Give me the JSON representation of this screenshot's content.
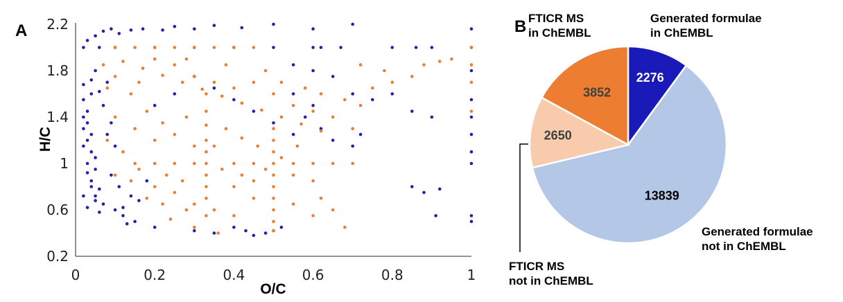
{
  "chart_data": [
    {
      "type": "scatter",
      "panel_label": "A",
      "xlabel": "O/C",
      "ylabel": "H/C",
      "xlim": [
        0,
        1
      ],
      "ylim": [
        0.2,
        2.2
      ],
      "x_ticks": [
        "0",
        "0.2",
        "0.4",
        "0.6",
        "0.8",
        "1"
      ],
      "y_ticks": [
        "0.2",
        "0.6",
        "1",
        "1.4",
        "1.8",
        "2.2"
      ],
      "grid": false,
      "legend": "none",
      "series": [
        {
          "color": "#1f1fb4",
          "points": [
            [
              0.02,
              1.55
            ],
            [
              0.03,
              1.45
            ],
            [
              0.02,
              1.3
            ],
            [
              0.03,
              1.2
            ],
            [
              0.04,
              1.1
            ],
            [
              0.03,
              1.0
            ],
            [
              0.05,
              0.95
            ],
            [
              0.04,
              0.85
            ],
            [
              0.06,
              0.78
            ],
            [
              0.05,
              0.72
            ],
            [
              0.07,
              0.65
            ],
            [
              0.06,
              1.62
            ],
            [
              0.04,
              1.72
            ],
            [
              0.05,
              1.8
            ],
            [
              0.08,
              1.7
            ],
            [
              0.07,
              1.5
            ],
            [
              0.09,
              1.35
            ],
            [
              0.08,
              1.25
            ],
            [
              0.1,
              1.15
            ],
            [
              0.09,
              0.9
            ],
            [
              0.11,
              0.8
            ],
            [
              0.1,
              0.6
            ],
            [
              0.12,
              0.55
            ],
            [
              0.13,
              0.48
            ],
            [
              0.15,
              0.5
            ],
            [
              0.03,
              2.06
            ],
            [
              0.05,
              2.1
            ],
            [
              0.07,
              2.14
            ],
            [
              0.09,
              2.16
            ],
            [
              0.11,
              2.12
            ],
            [
              0.14,
              2.15
            ],
            [
              0.17,
              2.16
            ],
            [
              0.22,
              2.15
            ],
            [
              0.25,
              2.18
            ],
            [
              0.3,
              2.16
            ],
            [
              0.35,
              2.19
            ],
            [
              0.42,
              2.17
            ],
            [
              0.5,
              2.2
            ],
            [
              0.6,
              2.16
            ],
            [
              0.7,
              2.2
            ],
            [
              1.0,
              2.16
            ],
            [
              0.02,
              2.0
            ],
            [
              0.06,
              2.0
            ],
            [
              0.1,
              2.0
            ],
            [
              0.2,
              2.0
            ],
            [
              0.3,
              2.0
            ],
            [
              0.4,
              2.0
            ],
            [
              0.5,
              2.0
            ],
            [
              0.6,
              2.0
            ],
            [
              0.62,
              2.0
            ],
            [
              0.67,
              2.0
            ],
            [
              0.8,
              2.0
            ],
            [
              0.86,
              2.0
            ],
            [
              0.9,
              2.0
            ],
            [
              1.0,
              2.0
            ],
            [
              0.55,
              1.85
            ],
            [
              0.6,
              1.8
            ],
            [
              0.65,
              1.75
            ],
            [
              0.7,
              1.6
            ],
            [
              0.75,
              1.55
            ],
            [
              0.8,
              1.6
            ],
            [
              0.85,
              1.45
            ],
            [
              0.9,
              1.4
            ],
            [
              0.55,
              1.6
            ],
            [
              0.6,
              1.5
            ],
            [
              0.58,
              1.4
            ],
            [
              0.62,
              1.3
            ],
            [
              0.65,
              1.2
            ],
            [
              0.7,
              1.15
            ],
            [
              0.72,
              1.25
            ],
            [
              0.85,
              0.8
            ],
            [
              0.88,
              0.75
            ],
            [
              0.92,
              0.78
            ],
            [
              0.91,
              0.55
            ],
            [
              1.0,
              0.55
            ],
            [
              1.0,
              0.5
            ],
            [
              1.0,
              1.0
            ],
            [
              1.0,
              1.1
            ],
            [
              1.0,
              1.25
            ],
            [
              1.0,
              1.4
            ],
            [
              1.0,
              1.55
            ],
            [
              1.0,
              1.8
            ],
            [
              0.45,
              0.38
            ],
            [
              0.48,
              0.4
            ],
            [
              0.5,
              0.42
            ],
            [
              0.52,
              0.45
            ],
            [
              0.43,
              0.42
            ],
            [
              0.4,
              0.45
            ],
            [
              0.35,
              0.4
            ],
            [
              0.3,
              0.42
            ],
            [
              0.2,
              0.45
            ],
            [
              0.12,
              0.62
            ],
            [
              0.14,
              0.72
            ],
            [
              0.16,
              0.68
            ],
            [
              0.18,
              0.85
            ],
            [
              0.2,
              1.5
            ],
            [
              0.25,
              1.6
            ],
            [
              0.3,
              1.75
            ],
            [
              0.35,
              1.65
            ],
            [
              0.4,
              1.55
            ],
            [
              0.45,
              1.45
            ],
            [
              0.5,
              1.35
            ],
            [
              0.55,
              1.25
            ],
            [
              0.02,
              1.4
            ],
            [
              0.03,
              1.35
            ],
            [
              0.04,
              1.25
            ],
            [
              0.02,
              1.15
            ],
            [
              0.05,
              1.05
            ],
            [
              0.03,
              0.92
            ],
            [
              0.04,
              0.8
            ],
            [
              0.05,
              0.68
            ],
            [
              0.06,
              0.58
            ],
            [
              0.02,
              0.72
            ],
            [
              0.03,
              0.62
            ],
            [
              0.04,
              1.6
            ],
            [
              0.02,
              1.68
            ]
          ]
        },
        {
          "color": "#ed7d31",
          "points": [
            [
              0.1,
              2.0
            ],
            [
              0.15,
              2.0
            ],
            [
              0.2,
              2.0
            ],
            [
              0.25,
              2.0
            ],
            [
              0.3,
              2.0
            ],
            [
              0.35,
              2.0
            ],
            [
              0.4,
              2.0
            ],
            [
              0.45,
              2.0
            ],
            [
              0.12,
              1.88
            ],
            [
              0.17,
              1.82
            ],
            [
              0.22,
              1.76
            ],
            [
              0.27,
              1.7
            ],
            [
              0.32,
              1.64
            ],
            [
              0.37,
              1.58
            ],
            [
              0.42,
              1.52
            ],
            [
              0.47,
              1.46
            ],
            [
              0.52,
              1.4
            ],
            [
              0.57,
              1.34
            ],
            [
              0.62,
              1.28
            ],
            [
              0.2,
              1.9
            ],
            [
              0.25,
              1.85
            ],
            [
              0.3,
              1.75
            ],
            [
              0.35,
              1.7
            ],
            [
              0.4,
              1.65
            ],
            [
              0.45,
              1.7
            ],
            [
              0.5,
              1.6
            ],
            [
              0.55,
              1.5
            ],
            [
              0.6,
              1.45
            ],
            [
              0.65,
              1.4
            ],
            [
              0.7,
              1.3
            ],
            [
              0.33,
              1.33
            ],
            [
              0.33,
              1.2
            ],
            [
              0.33,
              1.1
            ],
            [
              0.33,
              1.0
            ],
            [
              0.33,
              0.9
            ],
            [
              0.33,
              0.8
            ],
            [
              0.33,
              0.7
            ],
            [
              0.33,
              1.45
            ],
            [
              0.33,
              1.6
            ],
            [
              0.33,
              0.55
            ],
            [
              0.5,
              1.0
            ],
            [
              0.5,
              0.9
            ],
            [
              0.5,
              0.8
            ],
            [
              0.5,
              0.7
            ],
            [
              0.5,
              0.6
            ],
            [
              0.5,
              0.5
            ],
            [
              0.5,
              0.42
            ],
            [
              0.5,
              1.1
            ],
            [
              0.5,
              1.2
            ],
            [
              0.5,
              1.3
            ],
            [
              0.25,
              1.0
            ],
            [
              0.2,
              1.0
            ],
            [
              0.15,
              1.0
            ],
            [
              0.3,
              1.0
            ],
            [
              0.4,
              1.0
            ],
            [
              0.45,
              1.0
            ],
            [
              0.55,
              1.0
            ],
            [
              0.6,
              1.0
            ],
            [
              0.65,
              1.0
            ],
            [
              0.7,
              1.0
            ],
            [
              0.2,
              1.2
            ],
            [
              0.25,
              1.25
            ],
            [
              0.3,
              1.15
            ],
            [
              0.15,
              1.3
            ],
            [
              0.1,
              1.4
            ],
            [
              0.18,
              1.45
            ],
            [
              0.22,
              1.35
            ],
            [
              0.28,
              1.4
            ],
            [
              0.38,
              1.3
            ],
            [
              0.42,
              1.22
            ],
            [
              0.46,
              1.15
            ],
            [
              0.2,
              0.8
            ],
            [
              0.25,
              0.75
            ],
            [
              0.3,
              0.65
            ],
            [
              0.35,
              0.6
            ],
            [
              0.4,
              0.55
            ],
            [
              0.28,
              0.6
            ],
            [
              0.24,
              0.52
            ],
            [
              0.22,
              0.65
            ],
            [
              0.18,
              0.7
            ],
            [
              0.4,
              0.8
            ],
            [
              0.45,
              0.85
            ],
            [
              0.55,
              0.9
            ],
            [
              0.6,
              0.85
            ],
            [
              0.62,
              0.7
            ],
            [
              0.65,
              0.6
            ],
            [
              0.6,
              0.55
            ],
            [
              0.55,
              0.65
            ],
            [
              0.45,
              0.7
            ],
            [
              0.68,
              0.45
            ],
            [
              0.72,
              1.85
            ],
            [
              0.78,
              1.8
            ],
            [
              0.85,
              1.75
            ],
            [
              0.88,
              1.85
            ],
            [
              0.92,
              1.88
            ],
            [
              0.95,
              1.9
            ],
            [
              0.8,
              1.7
            ],
            [
              0.75,
              1.65
            ],
            [
              0.72,
              1.5
            ],
            [
              0.68,
              1.55
            ],
            [
              1.0,
              2.0
            ],
            [
              1.0,
              1.85
            ],
            [
              1.0,
              1.7
            ],
            [
              1.0,
              1.45
            ],
            [
              0.14,
              0.85
            ],
            [
              0.16,
              0.95
            ],
            [
              0.12,
              1.1
            ],
            [
              0.08,
              1.2
            ],
            [
              0.1,
              0.9
            ],
            [
              0.14,
              1.6
            ],
            [
              0.16,
              1.7
            ],
            [
              0.1,
              1.75
            ],
            [
              0.07,
              1.85
            ],
            [
              0.08,
              1.65
            ],
            [
              0.28,
              1.9
            ],
            [
              0.38,
              1.85
            ],
            [
              0.48,
              1.8
            ],
            [
              0.52,
              1.7
            ],
            [
              0.58,
              1.65
            ],
            [
              0.62,
              1.6
            ],
            [
              0.35,
              1.15
            ],
            [
              0.37,
              0.95
            ],
            [
              0.42,
              0.9
            ],
            [
              0.48,
              0.95
            ],
            [
              0.52,
              1.05
            ],
            [
              0.56,
              1.15
            ],
            [
              0.27,
              0.85
            ],
            [
              0.23,
              0.9
            ],
            [
              0.3,
              0.45
            ],
            [
              0.36,
              0.4
            ]
          ]
        }
      ]
    },
    {
      "type": "pie",
      "panel_label": "B",
      "slices": [
        {
          "value": 2276,
          "value_label": "2276",
          "label_lines": [
            "Generated formulae",
            "in ChEMBL"
          ],
          "color": "#1a1ab8",
          "text_color": "#ffffff"
        },
        {
          "value": 13839,
          "value_label": "13839",
          "label_lines": [
            "Generated formulae",
            "not in ChEMBL"
          ],
          "color": "#b4c7e7",
          "text_color": "#000000"
        },
        {
          "value": 2650,
          "value_label": "2650",
          "label_lines": [
            "FTICR MS",
            "not in ChEMBL"
          ],
          "color": "#f8cbad",
          "text_color": "#404040"
        },
        {
          "value": 3852,
          "value_label": "3852",
          "label_lines": [
            "FTICR MS",
            "in ChEMBL"
          ],
          "color": "#ed7d31",
          "text_color": "#404040"
        }
      ]
    }
  ]
}
